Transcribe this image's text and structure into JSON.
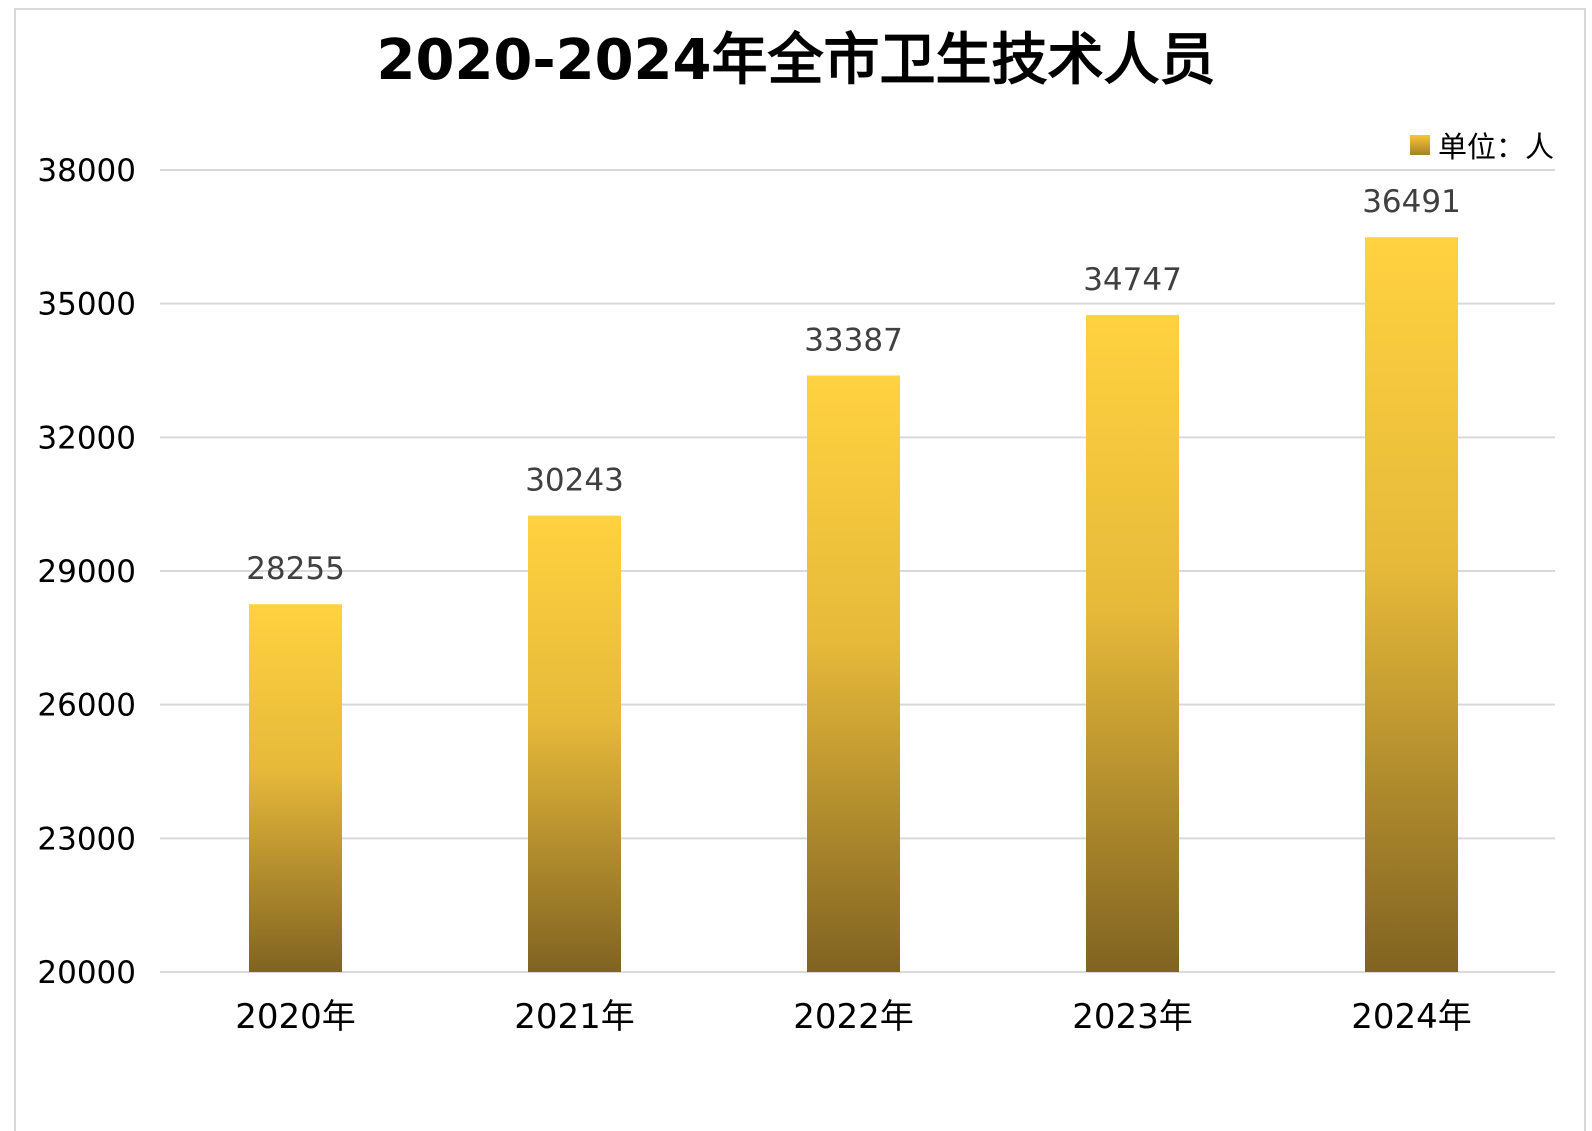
{
  "chart_data": {
    "type": "bar",
    "title": "2020-2024年全市卫生技术人员",
    "categories": [
      "2020年",
      "2021年",
      "2022年",
      "2023年",
      "2024年"
    ],
    "series": [
      {
        "name": "单位：人",
        "values": [
          28255,
          30243,
          33387,
          34747,
          36491
        ]
      }
    ],
    "data_labels": [
      "28255",
      "30243",
      "33387",
      "34747",
      "36491"
    ],
    "ylim": [
      20000,
      38000
    ],
    "yticks": [
      20000,
      23000,
      26000,
      29000,
      32000,
      35000,
      38000
    ],
    "ytick_labels": [
      "20000",
      "23000",
      "26000",
      "29000",
      "32000",
      "35000",
      "38000"
    ],
    "grid": true,
    "legend_position": "top-right",
    "colors": {
      "bar_top": "#ffd240",
      "bar_bottom": "#806322",
      "gridline": "#d9d9d9",
      "data_label": "#404040",
      "axis_label": "#000000"
    }
  }
}
